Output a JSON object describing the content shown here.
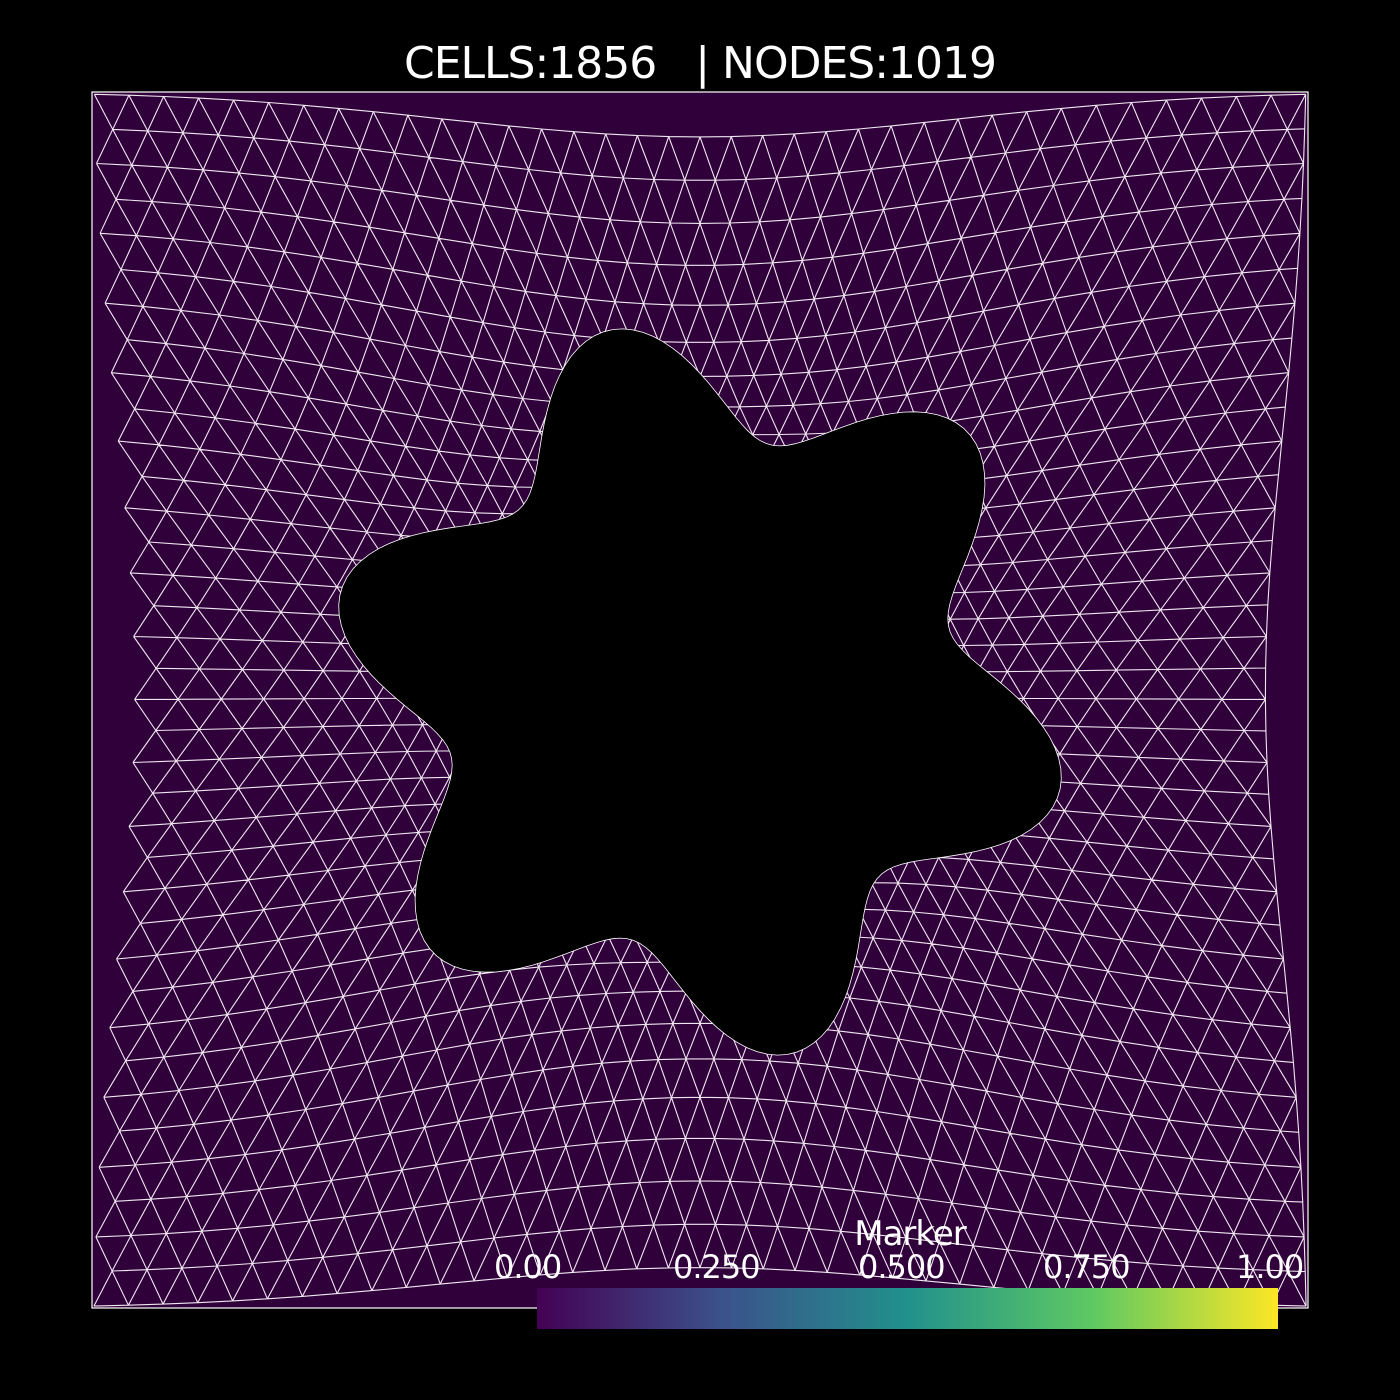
{
  "header": {
    "cells_label": "CELLS:1856",
    "separator": "|",
    "nodes_label": "NODES:1019"
  },
  "mesh": {
    "cell_count": 1856,
    "node_count": 1019,
    "fill_color": "#30003b",
    "edge_color": "#f0e8f0",
    "background_color": "#000000",
    "hole_shape": "six-lobed star"
  },
  "colorbar": {
    "title": "Marker",
    "ticks": [
      "0.00",
      "0.250",
      "0.500",
      "0.750",
      "1.00"
    ],
    "colormap": [
      "#440154",
      "#3b528b",
      "#21918c",
      "#5ec962",
      "#fde725"
    ]
  }
}
